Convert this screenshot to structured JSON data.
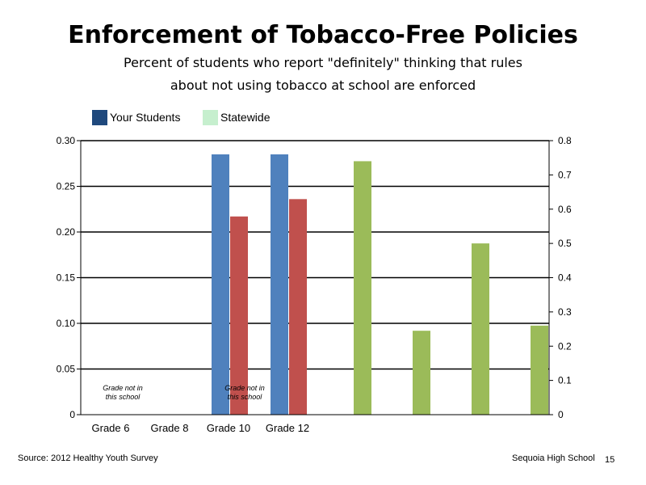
{
  "title": "Enforcement of Tobacco-Free Policies",
  "subtitle_line1": "Percent of students who report \"definitely\" thinking that rules",
  "subtitle_line2": "about not using tobacco at school are enforced",
  "footer": {
    "source": "Source: 2012 Healthy Youth Survey",
    "school": "Sequoia High School",
    "page": "15"
  },
  "colors": {
    "legend_your_students": "#1F497D",
    "legend_statewide": "#C6EFCE",
    "blue_bars": "#4F81BD",
    "red_bars": "#C0504D",
    "green_bars": "#9BBB59"
  },
  "chart_data": {
    "type": "bar",
    "legend": [
      {
        "label": "Your Students",
        "color": "#1F497D"
      },
      {
        "label": "Statewide",
        "color": "#C6EFCE"
      }
    ],
    "legend_placement": "top-left",
    "categories": [
      "Grade 6",
      "Grade 8",
      "Grade 10",
      "Grade 12"
    ],
    "annotations": [
      {
        "category": "Grade 6",
        "text_line1": "Grade not in",
        "text_line2": "this school"
      },
      {
        "category": "Grade 10",
        "text_line1": "Grade not in",
        "text_line2": "this school"
      }
    ],
    "series": [
      {
        "color": "#4F81BD",
        "axis": "left",
        "values": [
          null,
          null,
          0.285,
          0.285
        ]
      },
      {
        "color": "#C0504D",
        "axis": "left",
        "values": [
          null,
          null,
          0.217,
          0.236
        ]
      },
      {
        "color": "#9BBB59",
        "axis": "right",
        "values": [
          0.74,
          0.245,
          0.5,
          0.26
        ]
      }
    ],
    "y_left": {
      "lim": [
        0,
        0.3
      ],
      "ticks": [
        "0",
        "0.05",
        "0.10",
        "0.15",
        "0.20",
        "0.25",
        "0.30"
      ]
    },
    "y_right": {
      "lim": [
        0,
        0.8
      ],
      "ticks": [
        "0",
        "0.1",
        "0.2",
        "0.3",
        "0.4",
        "0.5",
        "0.6",
        "0.7",
        "0.8"
      ]
    },
    "grid": true
  }
}
